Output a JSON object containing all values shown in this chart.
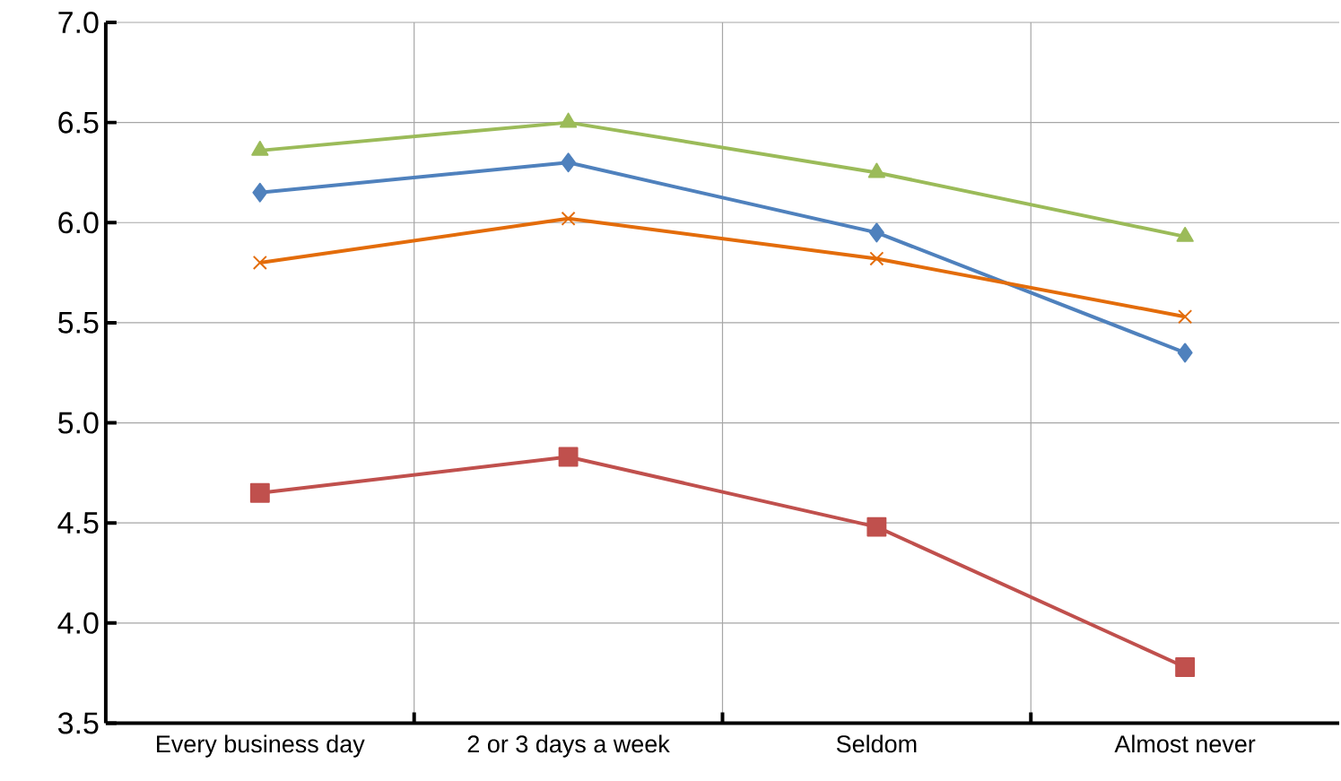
{
  "chart_data": {
    "type": "line",
    "categories": [
      "Every business day",
      "2 or 3 days a week",
      "Seldom",
      "Almost never"
    ],
    "series": [
      {
        "color": "#9bbb59",
        "marker": "triangle",
        "values": [
          6.36,
          6.5,
          6.25,
          5.93
        ]
      },
      {
        "color": "#4f81bd",
        "marker": "diamond",
        "values": [
          6.15,
          6.3,
          5.95,
          5.35
        ]
      },
      {
        "color": "#e36c0a",
        "marker": "cross",
        "values": [
          5.8,
          6.02,
          5.82,
          5.53
        ]
      },
      {
        "color": "#c0504d",
        "marker": "square",
        "values": [
          4.65,
          4.83,
          4.48,
          3.78
        ]
      }
    ],
    "ylim": [
      3.5,
      7.0
    ],
    "yticks": [
      {
        "value": 3.5,
        "label": "3.5"
      },
      {
        "value": 4.0,
        "label": "4.0"
      },
      {
        "value": 4.5,
        "label": "4.5"
      },
      {
        "value": 5.0,
        "label": "5.0"
      },
      {
        "value": 5.5,
        "label": "5.5"
      },
      {
        "value": 6.0,
        "label": "6.0"
      },
      {
        "value": 6.5,
        "label": "6.5"
      },
      {
        "value": 7.0,
        "label": "7.0"
      }
    ],
    "grid": true,
    "line_style": "solid"
  }
}
